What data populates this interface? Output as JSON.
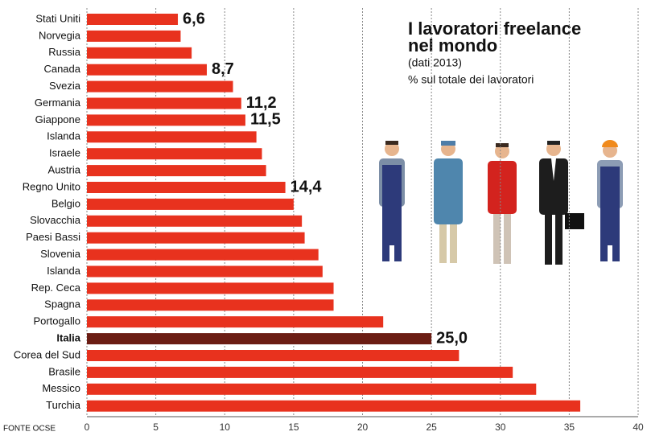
{
  "chart_data": {
    "type": "barh",
    "title": [
      "I lavoratori freelance",
      "nel mondo"
    ],
    "subtitle": [
      "(dati 2013)",
      "% sul totale dei lavoratori"
    ],
    "source": "FONTE OCSE",
    "categories": [
      "Stati Uniti",
      "Norvegia",
      "Russia",
      "Canada",
      "Svezia",
      "Germania",
      "Giappone",
      "Islanda",
      "Israele",
      "Austria",
      "Regno Unito",
      "Belgio",
      "Slovacchia",
      "Paesi Bassi",
      "Slovenia",
      "Islanda",
      "Rep. Ceca",
      "Spagna",
      "Portogallo",
      "Italia",
      "Corea del Sud",
      "Brasile",
      "Messico",
      "Turchia"
    ],
    "values": [
      6.6,
      6.8,
      7.6,
      8.7,
      10.6,
      11.2,
      11.5,
      12.3,
      12.7,
      13.0,
      14.4,
      15.0,
      15.6,
      15.8,
      16.8,
      17.1,
      17.9,
      17.9,
      21.5,
      25.0,
      27.0,
      30.9,
      32.6,
      35.8
    ],
    "value_labels": [
      "6,6",
      null,
      null,
      "8,7",
      null,
      "11,2",
      "11,5",
      null,
      null,
      null,
      "14,4",
      null,
      null,
      null,
      null,
      null,
      null,
      null,
      null,
      "25,0",
      null,
      null,
      null,
      null
    ],
    "color": "#e8321e",
    "colors": [
      "#e8321e",
      "#e8321e",
      "#e8321e",
      "#e8321e",
      "#e8321e",
      "#e8321e",
      "#e8321e",
      "#e8321e",
      "#e8321e",
      "#e8321e",
      "#e8321e",
      "#e8321e",
      "#e8321e",
      "#e8321e",
      "#e8321e",
      "#e8321e",
      "#e8321e",
      "#e8321e",
      "#e8321e",
      "#6b1d14",
      "#e8321e",
      "#e8321e",
      "#e8321e",
      "#e8321e"
    ],
    "xlim": [
      0,
      40
    ],
    "xticks": [
      0,
      5,
      10,
      15,
      20,
      25,
      30,
      35,
      40
    ],
    "grid": true
  }
}
